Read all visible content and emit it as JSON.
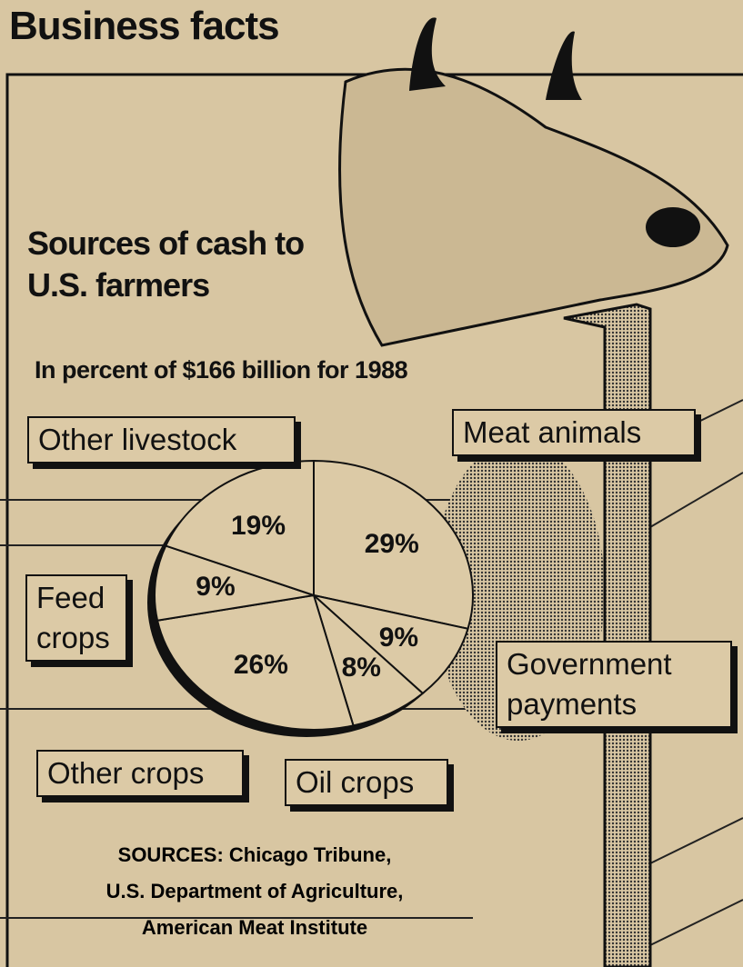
{
  "header": {
    "title": "Business facts"
  },
  "chart_data": {
    "type": "pie",
    "title": "Sources of cash to U.S. farmers",
    "subtitle": "In percent of $166 billion for 1988",
    "categories": [
      "Meat animals",
      "Government payments",
      "Oil crops",
      "Other crops",
      "Feed crops",
      "Other livestock"
    ],
    "values": [
      29,
      9,
      8,
      26,
      9,
      19
    ],
    "value_labels": [
      "29%",
      "9%",
      "8%",
      "26%",
      "9%",
      "19%"
    ],
    "color": "#dccaa6",
    "sources": [
      "SOURCES: Chicago Tribune,",
      "U.S. Department of Agriculture,",
      "American Meat Institute"
    ]
  }
}
